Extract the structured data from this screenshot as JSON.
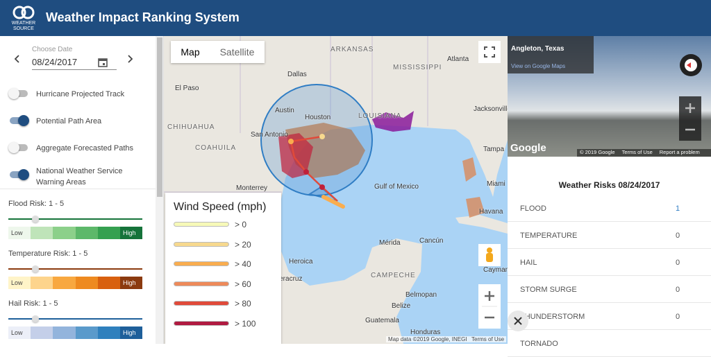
{
  "header": {
    "logo": "WEATHER SOURCE",
    "title": "Weather Impact Ranking System"
  },
  "sidebar": {
    "date_label": "Choose Date",
    "date": "08/24/2017",
    "toggles": [
      {
        "label": "Hurricane Projected Track",
        "on": false
      },
      {
        "label": "Potential Path Area",
        "on": true
      },
      {
        "label": "Aggregate Forecasted Paths",
        "on": false
      },
      {
        "label": "National Weather Service Warning Areas",
        "on": true
      }
    ],
    "risks": [
      {
        "label": "Flood Risk: 1 - 5",
        "low": "Low",
        "high": "High",
        "colors": [
          "#eef7ec",
          "#bfe4b9",
          "#8cd08a",
          "#5db86a",
          "#35a050",
          "#15733a"
        ]
      },
      {
        "label": "Temperature Risk: 1 - 5",
        "low": "Low",
        "high": "High",
        "colors": [
          "#fff4c8",
          "#fdd48c",
          "#f8a840",
          "#ee8a20",
          "#d8600f",
          "#8b3a0f"
        ]
      },
      {
        "label": "Hail Risk: 1 - 5",
        "low": "Low",
        "high": "High",
        "colors": [
          "#eceff8",
          "#c4cfe9",
          "#93b4dc",
          "#5a9acb",
          "#2f80bd",
          "#1e5f9a"
        ]
      }
    ]
  },
  "map": {
    "tabs": [
      "Map",
      "Satellite"
    ],
    "places": [
      "ARKANSAS",
      "MISSISSIPPI",
      "Dallas",
      "El Paso",
      "Atlanta",
      "Austin",
      "Houston",
      "San Antonio",
      "LOUISIANA",
      "Jacksonville",
      "CHIHUAHUA",
      "Tampa",
      "COAHUILA",
      "Monterrey",
      "Gulf of Mexico",
      "Miami",
      "Havana",
      "Mérida",
      "Cancún",
      "Heroica",
      "Veracruz",
      "CAMPECHE",
      "Belmopan",
      "Belize",
      "Guatemala",
      "Honduras",
      "Cayman Islands"
    ],
    "legend": {
      "title": "Wind Speed (mph)",
      "items": [
        {
          "label": "> 0",
          "color": "#f7f9b8"
        },
        {
          "label": "> 20",
          "color": "#f7d98e"
        },
        {
          "label": "> 40",
          "color": "#f9ad4f"
        },
        {
          "label": "> 60",
          "color": "#ee8a5a"
        },
        {
          "label": "> 80",
          "color": "#e04a3a"
        },
        {
          "label": "> 100",
          "color": "#b01a40"
        }
      ]
    },
    "attribution": "Map data ©2019 Google, INEGI",
    "terms": "Terms of Use"
  },
  "street_view": {
    "place": "Angleton, Texas",
    "link": "View on Google Maps",
    "brand": "Google",
    "copyright": "© 2019 Google",
    "terms": "Terms of Use",
    "report": "Report a problem"
  },
  "risks": {
    "title": "Weather Risks 08/24/2017",
    "rows": [
      {
        "name": "FLOOD",
        "value": 1
      },
      {
        "name": "TEMPERATURE",
        "value": 0
      },
      {
        "name": "HAIL",
        "value": 0
      },
      {
        "name": "STORM SURGE",
        "value": 0
      },
      {
        "name": "THUNDERSTORM",
        "value": 0
      },
      {
        "name": "TORNADO"
      }
    ]
  }
}
